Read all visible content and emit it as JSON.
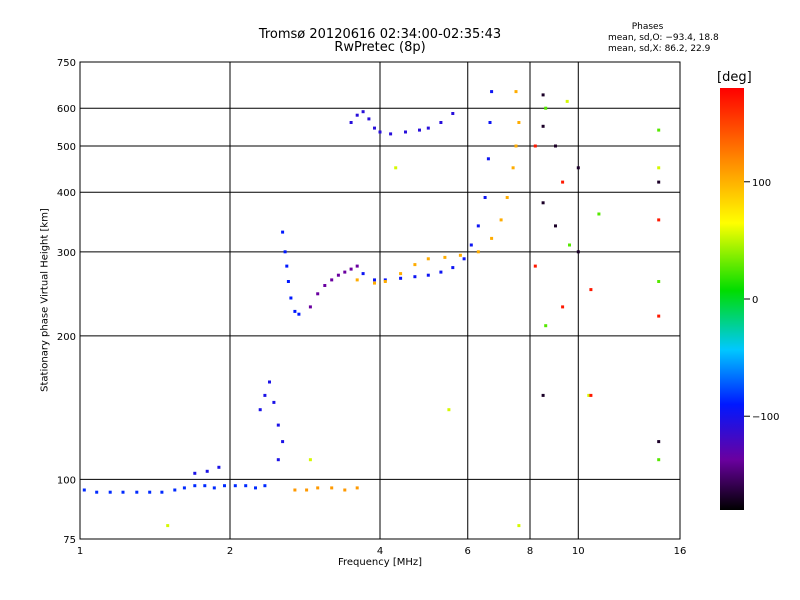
{
  "chart_data": {
    "type": "scatter",
    "title": "Tromsø 20120616 02:34:00-02:35:43",
    "subtitle": "RwPretec (8p)",
    "xlabel": "Frequency [MHz]",
    "ylabel": "Stationary phase Virtual Height [km]",
    "x_scale": "log",
    "y_scale": "log",
    "xlim": [
      1,
      16
    ],
    "ylim": [
      75,
      750
    ],
    "x_ticks": [
      1,
      2,
      4,
      6,
      8,
      10,
      16
    ],
    "y_ticks": [
      75,
      100,
      200,
      300,
      400,
      500,
      600,
      750
    ],
    "grid": true,
    "phases": {
      "header": "Phases",
      "o_text": "mean, sd,O: −93.4, 18.8",
      "x_text": "mean, sd,X:  86.2, 22.9"
    },
    "colorbar": {
      "label": "[deg]",
      "ticks": [
        100,
        0,
        -100
      ],
      "range": [
        -180,
        180
      ],
      "palette": "rainbow"
    },
    "series": [
      {
        "phase": -95,
        "points": [
          [
            1.02,
            95
          ],
          [
            1.08,
            94
          ],
          [
            1.15,
            94
          ],
          [
            1.22,
            94
          ],
          [
            1.3,
            94
          ],
          [
            1.38,
            94
          ],
          [
            1.46,
            94
          ],
          [
            1.55,
            95
          ],
          [
            1.62,
            96
          ],
          [
            1.7,
            97
          ],
          [
            1.78,
            97
          ],
          [
            1.86,
            96
          ],
          [
            1.95,
            97
          ],
          [
            2.05,
            97
          ],
          [
            2.15,
            97
          ],
          [
            2.25,
            96
          ],
          [
            2.35,
            97
          ]
        ]
      },
      {
        "phase": -110,
        "points": [
          [
            1.7,
            103
          ],
          [
            1.8,
            104
          ],
          [
            1.9,
            106
          ],
          [
            2.3,
            140
          ],
          [
            2.35,
            150
          ],
          [
            2.4,
            160
          ],
          [
            2.45,
            145
          ],
          [
            2.5,
            130
          ],
          [
            2.55,
            120
          ],
          [
            2.5,
            110
          ]
        ]
      },
      {
        "phase": -100,
        "points": [
          [
            2.55,
            330
          ],
          [
            2.58,
            300
          ],
          [
            2.6,
            280
          ],
          [
            2.62,
            260
          ],
          [
            2.65,
            240
          ],
          [
            2.7,
            225
          ],
          [
            2.75,
            222
          ]
        ]
      },
      {
        "phase": -140,
        "points": [
          [
            2.9,
            230
          ],
          [
            3.0,
            245
          ],
          [
            3.1,
            255
          ],
          [
            3.2,
            262
          ],
          [
            3.3,
            268
          ],
          [
            3.4,
            272
          ],
          [
            3.5,
            276
          ],
          [
            3.6,
            280
          ]
        ]
      },
      {
        "phase": -115,
        "points": [
          [
            3.5,
            560
          ],
          [
            3.6,
            580
          ],
          [
            3.7,
            590
          ],
          [
            3.8,
            570
          ],
          [
            3.9,
            545
          ],
          [
            4.0,
            535
          ],
          [
            4.2,
            530
          ],
          [
            4.5,
            535
          ],
          [
            4.8,
            540
          ],
          [
            5.0,
            545
          ],
          [
            5.3,
            560
          ],
          [
            5.6,
            585
          ]
        ]
      },
      {
        "phase": -105,
        "points": [
          [
            3.7,
            270
          ],
          [
            3.9,
            262
          ],
          [
            4.1,
            262
          ],
          [
            4.4,
            264
          ],
          [
            4.7,
            266
          ],
          [
            5.0,
            268
          ],
          [
            5.3,
            272
          ],
          [
            5.6,
            278
          ],
          [
            5.9,
            290
          ],
          [
            6.1,
            310
          ],
          [
            6.3,
            340
          ],
          [
            6.5,
            390
          ],
          [
            6.6,
            470
          ],
          [
            6.65,
            560
          ],
          [
            6.7,
            650
          ]
        ]
      },
      {
        "phase": 105,
        "points": [
          [
            3.6,
            262
          ],
          [
            3.9,
            258
          ],
          [
            4.1,
            260
          ],
          [
            4.4,
            270
          ],
          [
            4.7,
            282
          ],
          [
            5.0,
            290
          ],
          [
            5.4,
            292
          ],
          [
            5.8,
            295
          ],
          [
            6.3,
            300
          ],
          [
            6.7,
            320
          ],
          [
            7.0,
            350
          ],
          [
            7.2,
            390
          ],
          [
            7.4,
            450
          ],
          [
            7.5,
            500
          ],
          [
            7.6,
            560
          ],
          [
            7.5,
            650
          ]
        ]
      },
      {
        "phase": 115,
        "points": [
          [
            2.7,
            95
          ],
          [
            2.85,
            95
          ],
          [
            3.0,
            96
          ],
          [
            3.2,
            96
          ],
          [
            3.4,
            95
          ],
          [
            3.6,
            96
          ]
        ]
      },
      {
        "phase": 50,
        "points": [
          [
            1.5,
            80
          ],
          [
            2.9,
            110
          ],
          [
            4.3,
            450
          ],
          [
            5.5,
            140
          ],
          [
            7.6,
            80
          ],
          [
            9.5,
            620
          ],
          [
            10.5,
            150
          ],
          [
            14.5,
            450
          ]
        ]
      },
      {
        "phase": -170,
        "points": [
          [
            8.5,
            640
          ],
          [
            8.5,
            550
          ],
          [
            8.5,
            380
          ],
          [
            8.5,
            150
          ],
          [
            9.0,
            500
          ],
          [
            9.0,
            340
          ],
          [
            10.0,
            450
          ],
          [
            10.0,
            300
          ],
          [
            14.5,
            420
          ],
          [
            14.5,
            120
          ]
        ]
      },
      {
        "phase": 170,
        "points": [
          [
            8.2,
            500
          ],
          [
            8.2,
            280
          ],
          [
            9.3,
            420
          ],
          [
            9.3,
            230
          ],
          [
            10.6,
            250
          ],
          [
            10.6,
            150
          ],
          [
            14.5,
            350
          ],
          [
            14.5,
            220
          ]
        ]
      },
      {
        "phase": 20,
        "points": [
          [
            8.6,
            600
          ],
          [
            8.6,
            210
          ],
          [
            9.6,
            310
          ],
          [
            11.0,
            360
          ],
          [
            14.5,
            540
          ],
          [
            14.5,
            260
          ],
          [
            14.5,
            110
          ]
        ]
      }
    ]
  }
}
